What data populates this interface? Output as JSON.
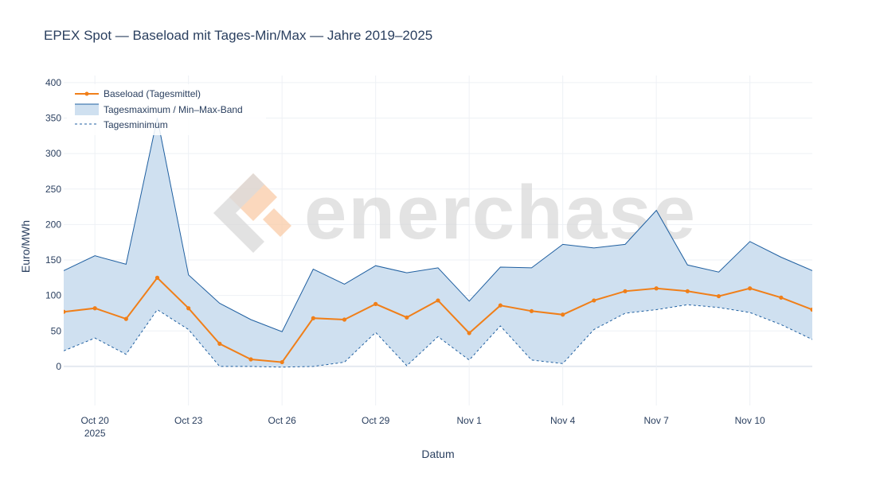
{
  "chart_data": {
    "type": "line",
    "title": "EPEX Spot — Baseload mit Tages-Min/Max — Jahre 2019–2025",
    "xlabel": "Datum",
    "ylabel": "Euro/MWh",
    "ylim": [
      -55,
      410
    ],
    "xlim": [
      "2025-10-19",
      "2025-11-12"
    ],
    "y_ticks": [
      0,
      50,
      100,
      150,
      200,
      250,
      300,
      350,
      400
    ],
    "x_ticks": [
      {
        "date": "2025-10-20",
        "label": "Oct 20",
        "sublabel": "2025"
      },
      {
        "date": "2025-10-23",
        "label": "Oct 23"
      },
      {
        "date": "2025-10-26",
        "label": "Oct 26"
      },
      {
        "date": "2025-10-29",
        "label": "Oct 29"
      },
      {
        "date": "2025-11-01",
        "label": "Nov 1"
      },
      {
        "date": "2025-11-04",
        "label": "Nov 4"
      },
      {
        "date": "2025-11-07",
        "label": "Nov 7"
      },
      {
        "date": "2025-11-10",
        "label": "Nov 10"
      }
    ],
    "grid": true,
    "legend_position": "top-left",
    "dates": [
      "2025-10-19",
      "2025-10-20",
      "2025-10-21",
      "2025-10-22",
      "2025-10-23",
      "2025-10-24",
      "2025-10-25",
      "2025-10-26",
      "2025-10-27",
      "2025-10-28",
      "2025-10-29",
      "2025-10-30",
      "2025-10-31",
      "2025-11-01",
      "2025-11-02",
      "2025-11-03",
      "2025-11-04",
      "2025-11-05",
      "2025-11-06",
      "2025-11-07",
      "2025-11-08",
      "2025-11-09",
      "2025-11-10",
      "2025-11-11",
      "2025-11-12"
    ],
    "series": [
      {
        "name": "Baseload (Tagesmittel)",
        "color": "#f07f19",
        "values": [
          77,
          82,
          67,
          125,
          82,
          32,
          10,
          6,
          68,
          66,
          88,
          69,
          93,
          47,
          86,
          78,
          73,
          93,
          106,
          110,
          106,
          99,
          110,
          97,
          80
        ]
      },
      {
        "name": "Tagesmaximum / Min–Max-Band",
        "color": "#1f5fa0",
        "fill": "#cfe0f0",
        "values": [
          135,
          156,
          144,
          350,
          129,
          89,
          66,
          49,
          137,
          116,
          142,
          132,
          139,
          92,
          140,
          139,
          172,
          167,
          172,
          220,
          143,
          133,
          176,
          154,
          135
        ]
      },
      {
        "name": "Tagesminimum",
        "color": "#1f5fa0",
        "dash": "dotted",
        "values": [
          22,
          40,
          17,
          80,
          52,
          0,
          0,
          -1,
          0,
          6,
          48,
          1,
          42,
          9,
          57,
          9,
          4,
          52,
          75,
          80,
          87,
          83,
          76,
          59,
          38
        ]
      }
    ]
  },
  "watermark": {
    "text": "enerchase",
    "color": "#d7d7d7",
    "accent": "#f9c9a4"
  }
}
